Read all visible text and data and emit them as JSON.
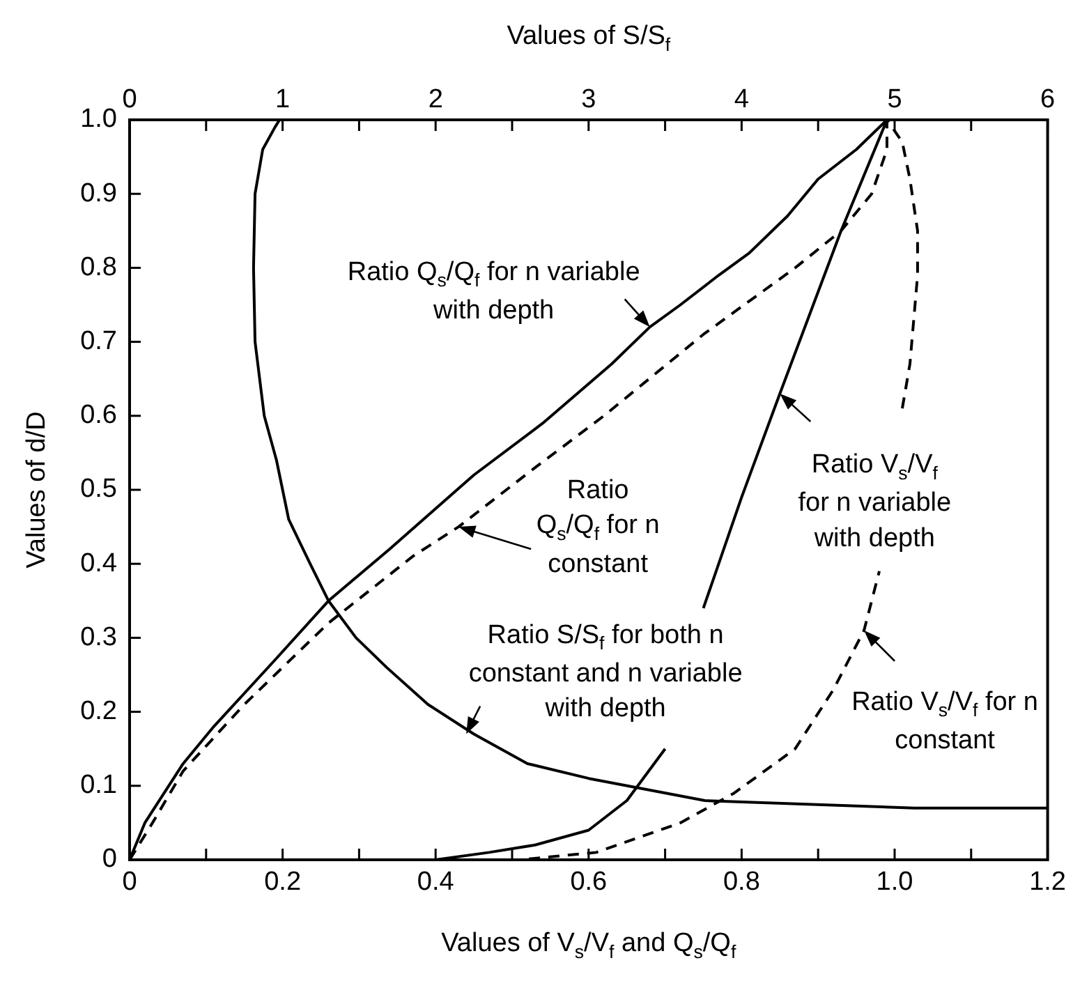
{
  "chart_data": {
    "type": "line",
    "x2label": "Values of S/S$_{f}$",
    "xlabel": "Values of V$_{s}$/V$_{f}$ and Q$_{s}$/Q$_{f}$",
    "ylabel": "Values of d/D",
    "xlim": [
      0,
      1.2
    ],
    "xticks": [
      0,
      {
        "value": 0.1,
        "label": null
      },
      0.2,
      {
        "value": 0.3,
        "label": null
      },
      0.4,
      {
        "value": 0.5,
        "label": null
      },
      0.6,
      {
        "value": 0.7,
        "label": null
      },
      0.8,
      {
        "value": 0.9,
        "label": null
      },
      {
        "value": 1,
        "label": "1.0"
      },
      {
        "value": 1.1,
        "label": null
      },
      1.2
    ],
    "x2lim": [
      0,
      6
    ],
    "x2ticks": [
      0,
      {
        "value": 0.5,
        "label": null
      },
      1,
      {
        "value": 1.5,
        "label": null
      },
      2,
      {
        "value": 2.5,
        "label": null
      },
      3,
      {
        "value": 3.5,
        "label": null
      },
      4,
      {
        "value": 4.5,
        "label": null
      },
      5,
      {
        "value": 5.5,
        "label": null
      },
      6
    ],
    "ylim": [
      0,
      1
    ],
    "yticks": [
      0,
      0.1,
      0.2,
      0.3,
      0.4,
      0.5,
      0.6,
      0.7,
      0.8,
      0.9,
      {
        "value": 1,
        "label": "1.0"
      }
    ],
    "series": [
      {
        "color": "#000000",
        "line_style": "solid",
        "x": [
          0,
          0.02,
          0.07,
          0.11,
          0.19,
          0.26,
          0.34,
          0.45,
          0.54,
          0.63,
          0.68,
          0.72,
          0.77,
          0.81,
          0.86,
          0.9,
          0.95,
          0.99
        ],
        "values": [
          0,
          0.05,
          0.13,
          0.18,
          0.27,
          0.35,
          0.42,
          0.52,
          0.59,
          0.67,
          0.72,
          0.75,
          0.79,
          0.82,
          0.87,
          0.92,
          0.96,
          1
        ]
      },
      {
        "color": "#000000",
        "line_style": "dashed",
        "x": [
          0,
          0.03,
          0.07,
          0.15,
          0.26,
          0.37,
          0.43,
          0.53,
          0.62,
          0.75,
          0.87,
          0.93,
          0.97,
          0.99,
          0.99
        ],
        "values": [
          0,
          0.05,
          0.12,
          0.21,
          0.32,
          0.41,
          0.45,
          0.53,
          0.6,
          0.71,
          0.8,
          0.85,
          0.9,
          0.96,
          1
        ]
      },
      {
        "color": "#000000",
        "line_style": "solid",
        "x": [
          0,
          0.4,
          0.47,
          0.53,
          0.6,
          0.65,
          0.7,
          0.72,
          0.75,
          0.8,
          0.85,
          0.93,
          0.99
        ],
        "values": [
          0,
          0,
          0.01,
          0.02,
          0.04,
          0.08,
          0.15,
          null,
          0.34,
          0.49,
          0.63,
          0.85,
          1
        ]
      },
      {
        "color": "#000000",
        "line_style": "dashed",
        "x": [
          0.42,
          0.51,
          0.61,
          0.72,
          0.79,
          0.87,
          0.92,
          0.96,
          0.98,
          0.99,
          1.01,
          1.02,
          1.03,
          1.03,
          1.02,
          1.01,
          0.99
        ],
        "values": [
          0,
          0,
          0.01,
          0.05,
          0.09,
          0.15,
          0.23,
          0.31,
          0.39,
          null,
          0.61,
          0.67,
          0.79,
          0.85,
          0.92,
          0.97,
          1
        ]
      },
      {
        "color": "#000000",
        "line_style": "solid",
        "axis": "x2",
        "x": [
          0.98,
          0.95,
          0.87,
          0.82,
          0.81,
          0.82,
          0.88,
          0.96,
          1.04,
          1.18,
          1.3,
          1.48,
          1.68,
          1.95,
          2.25,
          2.6,
          3,
          3.76,
          5.13,
          6
        ],
        "values": [
          1,
          0.99,
          0.96,
          0.9,
          0.8,
          0.7,
          0.6,
          0.54,
          0.46,
          0.4,
          0.35,
          0.3,
          0.26,
          0.21,
          0.17,
          0.13,
          0.11,
          0.08,
          0.07,
          0.07
        ]
      }
    ],
    "annotations": [
      {
        "text": "Ratio Q$_{s}$/Q$_{f}$ for n variable\nwith depth",
        "x": 0.68,
        "y": 0.72
      },
      {
        "text": "Ratio\nQ$_{s}$/Q$_{f}$ for n\nconstant",
        "x": 0.43,
        "y": 0.45
      },
      {
        "text": "Ratio S/S$_{f}$ for both n\nconstant and n variable\nwith depth",
        "x": 0.44,
        "y": 0.17
      },
      {
        "text": "Ratio V$_{s}$/V$_{f}$\nfor n variable\nwith depth",
        "x": 0.85,
        "y": 0.63
      },
      {
        "text": "Ratio V$_{s}$/V$_{f}$ for n\nconstant",
        "x": 0.96,
        "y": 0.31
      }
    ]
  }
}
